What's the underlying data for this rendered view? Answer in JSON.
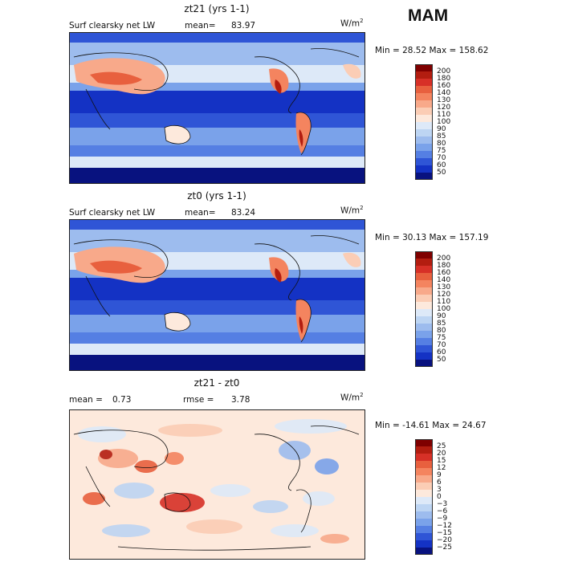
{
  "season": "MAM",
  "units": "W/m",
  "units_sup": "2",
  "panels": [
    {
      "title": "zt21 (yrs 1-1)",
      "variable": "Surf clearsky net LW",
      "mean_label": "mean=",
      "mean": "83.97",
      "minmax": "Min =  28.52 Max = 158.62"
    },
    {
      "title": "zt0 (yrs 1-1)",
      "variable": "Surf clearsky net LW",
      "mean_label": "mean=",
      "mean": "83.24",
      "minmax": "Min =  30.13 Max = 157.19"
    },
    {
      "title": "zt21 - zt0",
      "mean_label": "mean =",
      "mean": "0.73",
      "rmse_label": "rmse =",
      "rmse": "3.78",
      "minmax": "Min = -14.61 Max =  24.67"
    }
  ],
  "colorbars": {
    "abs": {
      "levels": [
        "200",
        "180",
        "160",
        "140",
        "130",
        "120",
        "110",
        "100",
        "90",
        "85",
        "80",
        "75",
        "70",
        "60",
        "50"
      ],
      "colors": [
        "#7f0000",
        "#b31d10",
        "#d73027",
        "#e8603e",
        "#f4845f",
        "#f8a98a",
        "#fbcdb5",
        "#fde9dc",
        "#dde9f8",
        "#bdd5f3",
        "#9dbcee",
        "#7aa2ea",
        "#557fe3",
        "#2f55d6",
        "#1432c4",
        "#08127f"
      ]
    },
    "diff": {
      "levels": [
        "25",
        "20",
        "15",
        "12",
        "9",
        "6",
        "3",
        "0",
        "−3",
        "−6",
        "−9",
        "−12",
        "−15",
        "−20",
        "−25"
      ],
      "colors": [
        "#7f0000",
        "#b31d10",
        "#d73027",
        "#e8603e",
        "#f4845f",
        "#f8a98a",
        "#fbcdb5",
        "#fde9dc",
        "#dde9f8",
        "#bdd5f3",
        "#9dbcee",
        "#7aa2ea",
        "#557fe3",
        "#2f55d6",
        "#1432c4",
        "#08127f"
      ]
    }
  },
  "chart_data": [
    {
      "type": "heatmap",
      "title": "zt21 (yrs 1-1)",
      "variable": "Surf clearsky net LW",
      "units": "W/m2",
      "mean": 83.97,
      "min": 28.52,
      "max": 158.62,
      "contour_levels": [
        50,
        60,
        70,
        75,
        80,
        85,
        90,
        100,
        110,
        120,
        130,
        140,
        160,
        180,
        200
      ]
    },
    {
      "type": "heatmap",
      "title": "zt0 (yrs 1-1)",
      "variable": "Surf clearsky net LW",
      "units": "W/m2",
      "mean": 83.24,
      "min": 30.13,
      "max": 157.19,
      "contour_levels": [
        50,
        60,
        70,
        75,
        80,
        85,
        90,
        100,
        110,
        120,
        130,
        140,
        160,
        180,
        200
      ]
    },
    {
      "type": "heatmap",
      "title": "zt21 - zt0",
      "units": "W/m2",
      "mean": 0.73,
      "rmse": 3.78,
      "min": -14.61,
      "max": 24.67,
      "contour_levels": [
        -25,
        -20,
        -15,
        -12,
        -9,
        -6,
        -3,
        0,
        3,
        6,
        9,
        12,
        15,
        20,
        25
      ]
    }
  ]
}
